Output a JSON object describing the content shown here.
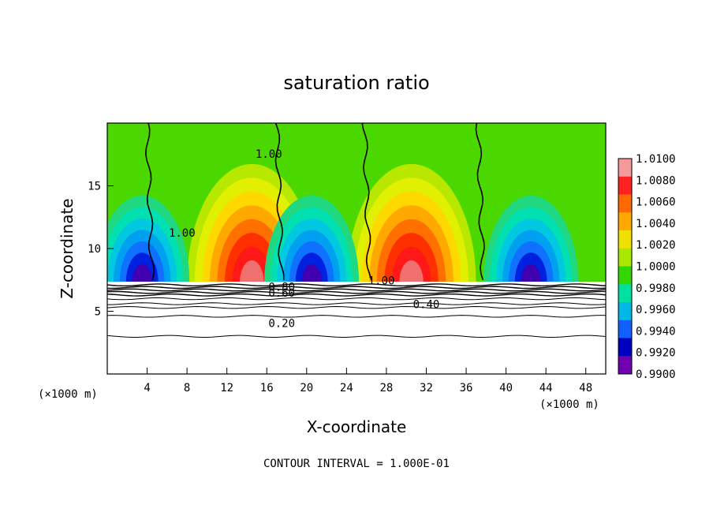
{
  "chart_data": {
    "type": "heatmap",
    "title": "saturation ratio",
    "xlabel": "X-coordinate",
    "ylabel": "Z-coordinate",
    "x_unit": "(×1000 m)",
    "x_unit_right": "(×1000 m)",
    "xlim": [
      0,
      50
    ],
    "ylim": [
      0,
      20
    ],
    "x_ticks": [
      4,
      8,
      12,
      16,
      20,
      24,
      28,
      32,
      36,
      40,
      44,
      48
    ],
    "y_ticks": [
      5,
      10,
      15
    ],
    "footer": "CONTOUR INTERVAL = 1.000E-01",
    "colorbar": {
      "labels": [
        "1.0100",
        "1.0080",
        "1.0060",
        "1.0040",
        "1.0020",
        "1.0000",
        "0.9980",
        "0.9960",
        "0.9940",
        "0.9920",
        "0.9900"
      ],
      "colors": [
        "#f59a9a",
        "#ff2020",
        "#ff6a00",
        "#ffa800",
        "#f0e000",
        "#a8e800",
        "#30d800",
        "#00e0a0",
        "#00b8e8",
        "#1060ff",
        "#0000c0",
        "#7000b0"
      ]
    },
    "contour_labels": [
      {
        "text": "1.00",
        "x": 16.2,
        "z": 17.5
      },
      {
        "text": "1.00",
        "x": 7.5,
        "z": 11.2
      },
      {
        "text": "1.00",
        "x": 27.5,
        "z": 7.4
      },
      {
        "text": "0.80",
        "x": 17.5,
        "z": 6.9
      },
      {
        "text": "0.60",
        "x": 17.5,
        "z": 6.4
      },
      {
        "text": "0.40",
        "x": 32.0,
        "z": 5.5
      },
      {
        "text": "0.20",
        "x": 17.5,
        "z": 4.0
      }
    ],
    "vertical_contours_x": [
      4.0,
      17.0,
      25.8,
      37.2
    ],
    "low_contour_levels_z": [
      7.1,
      6.9,
      6.7,
      6.5,
      6.3,
      6.0,
      5.6,
      5.3,
      4.6,
      3.0
    ],
    "features": [
      {
        "kind": "max",
        "x": 14.5,
        "z": 10.5,
        "value": 1.01
      },
      {
        "kind": "max",
        "x": 30.5,
        "z": 11.0,
        "value": 1.01
      },
      {
        "kind": "min",
        "x": 3.5,
        "z": 8.8,
        "value": 0.99
      },
      {
        "kind": "min",
        "x": 20.5,
        "z": 8.5,
        "value": 0.992
      },
      {
        "kind": "min",
        "x": 42.5,
        "z": 9.5,
        "value": 0.99
      }
    ]
  }
}
